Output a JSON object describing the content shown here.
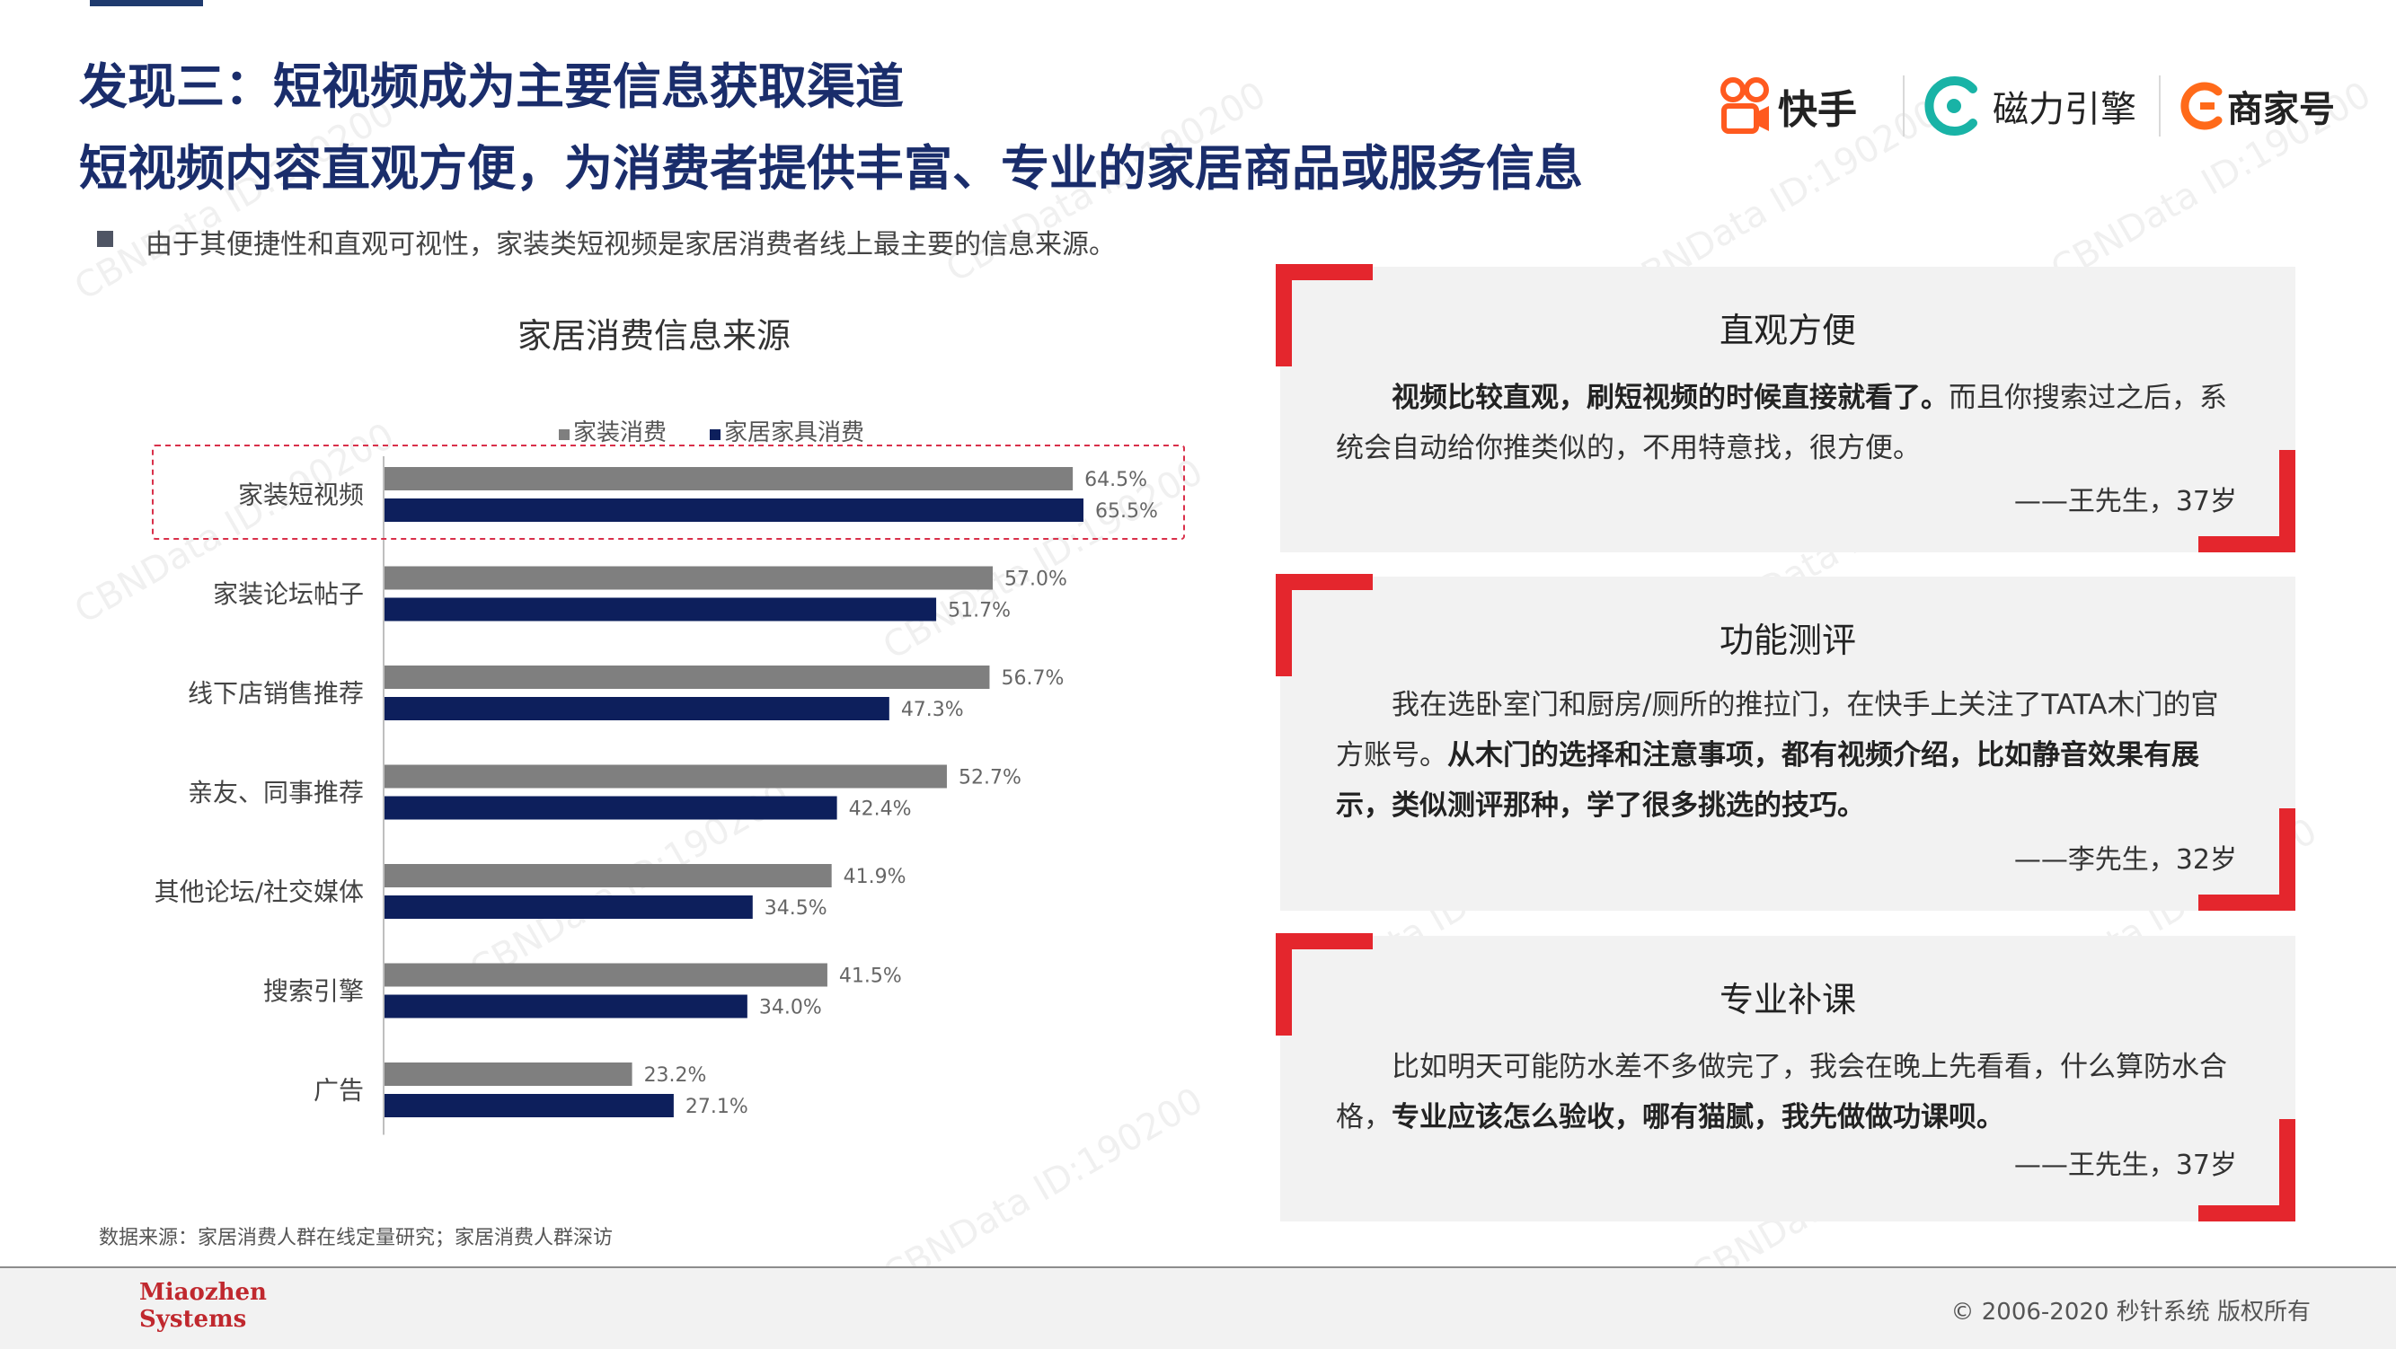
{
  "header": {
    "title_line1": "发现三：短视频成为主要信息获取渠道",
    "title_line2": "短视频内容直观方便，为消费者提供丰富、专业的家居商品或服务信息",
    "bullet": "由于其便捷性和直观可视性，家装类短视频是家居消费者线上最主要的信息来源。"
  },
  "logos": {
    "kuaishou": "快手",
    "cili": "磁力引擎",
    "shangjiahao": "商家号"
  },
  "chart_data": {
    "type": "bar",
    "orientation": "horizontal",
    "title": "家居消费信息来源",
    "categories": [
      "家装短视频",
      "家装论坛帖子",
      "线下店销售推荐",
      "亲友、同事推荐",
      "其他论坛/社交媒体",
      "搜索引擎",
      "广告"
    ],
    "series": [
      {
        "name": "家装消费",
        "color": "#7f7f7f",
        "values": [
          64.5,
          57.0,
          56.7,
          52.7,
          41.9,
          41.5,
          23.2
        ]
      },
      {
        "name": "家居家具消费",
        "color": "#0d1f5c",
        "values": [
          65.5,
          51.7,
          47.3,
          42.4,
          34.5,
          34.0,
          27.1
        ]
      }
    ],
    "value_suffix": "%",
    "xlim": [
      0,
      70
    ],
    "legend_position": "top",
    "highlight_category": "家装短视频"
  },
  "source_note": "数据来源：家居消费人群在线定量研究；家居消费人群深访",
  "cards": [
    {
      "title": "直观方便",
      "body_bold": "视频比较直观，刷短视频的时候直接就看了。",
      "body_normal": "而且你搜索过之后，系统会自动给你推类似的，不用特意找，很方便。",
      "author": "——王先生，37岁"
    },
    {
      "title": "功能测评",
      "body_normal": "我在选卧室门和厨房/厕所的推拉门，在快手上关注了TATA木门的官方账号。",
      "body_bold": "从木门的选择和注意事项，都有视频介绍，比如静音效果有展示，类似测评那种，学了很多挑选的技巧。",
      "author": "——李先生，32岁"
    },
    {
      "title": "专业补课",
      "body_normal": "比如明天可能防水差不多做完了，我会在晚上先看看，什么算防水合格，",
      "body_bold": "专业应该怎么验收，哪有猫腻，我先做做功课呗。",
      "author": "——王先生，37岁"
    }
  ],
  "footer": {
    "logo_line1": "Miaozhen",
    "logo_line2": "Systems",
    "copyright": "© 2006-2020 秒针系统 版权所有"
  },
  "watermark": "CBNData ID:190200",
  "colors": {
    "title_navy": "#1a2d6b",
    "accent_red": "#e4262d",
    "bar_gray": "#7f7f7f",
    "bar_navy": "#0d1f5c"
  }
}
